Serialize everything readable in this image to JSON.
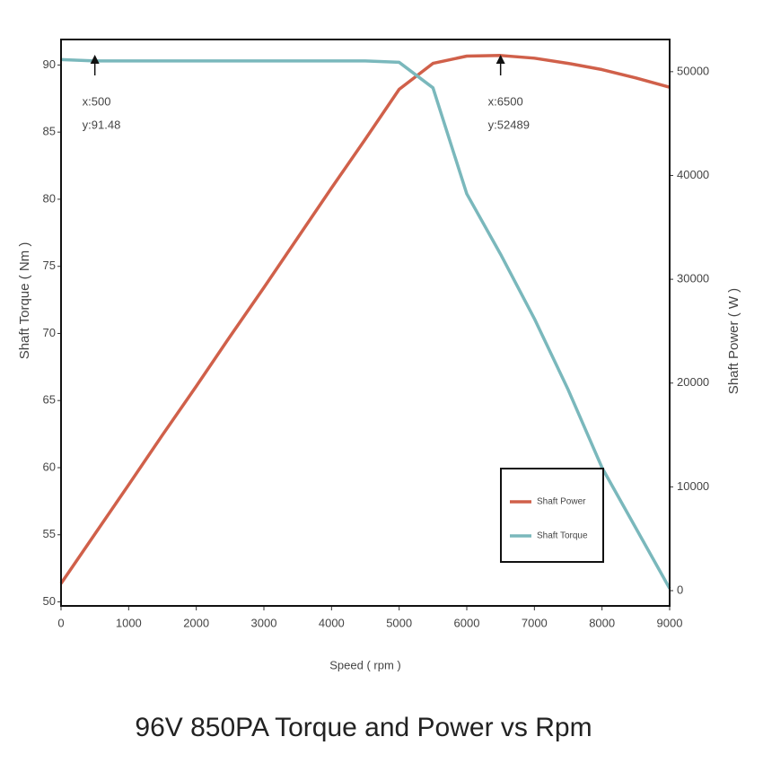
{
  "chart_data": {
    "type": "line",
    "title": "96V 850PA Torque and Power vs Rpm",
    "x_label": "Speed ( rpm )",
    "y_label": "Shaft Torque ( Nm )",
    "y2_label": "Shaft Power ( W )",
    "x": [
      0,
      500,
      1000,
      1500,
      2000,
      2500,
      3000,
      3500,
      4000,
      4500,
      5000,
      5500,
      6000,
      6500,
      7000,
      7500,
      8000,
      8500,
      9000
    ],
    "series": [
      {
        "name": "Shaft Power",
        "color": "#d0604a",
        "axis": "y2",
        "values": [
          690,
          5450,
          10200,
          15000,
          19700,
          24500,
          29200,
          34000,
          38800,
          43500,
          48300,
          50800,
          51500,
          51560,
          51300,
          50800,
          50200,
          49400,
          48500
        ]
      },
      {
        "name": "Shaft Torque",
        "color": "#7ab8bc",
        "values": [
          90.4,
          90.3,
          90.3,
          90.3,
          90.3,
          90.3,
          90.3,
          90.3,
          90.3,
          90.3,
          90.2,
          88.3,
          80.4,
          75.9,
          71.1,
          65.8,
          60.0,
          55.5,
          51.0
        ]
      }
    ],
    "xlim": [
      0,
      9000
    ],
    "xticks": [
      0,
      1000,
      2000,
      3000,
      4000,
      5000,
      6000,
      7000,
      8000,
      9000
    ],
    "ylim": [
      49.7,
      91.9
    ],
    "yticks": [
      50,
      55,
      60,
      65,
      70,
      75,
      80,
      85,
      90
    ],
    "y2lim": [
      -1470,
      53100
    ],
    "y2ticks": [
      0,
      10000,
      20000,
      30000,
      40000,
      50000
    ],
    "legend": "lower right",
    "annotations": [
      {
        "x": 500,
        "lines": [
          "x:500",
          "y:91.48"
        ]
      },
      {
        "x": 6500,
        "lines": [
          "x:6500",
          "y:52489"
        ]
      }
    ]
  }
}
